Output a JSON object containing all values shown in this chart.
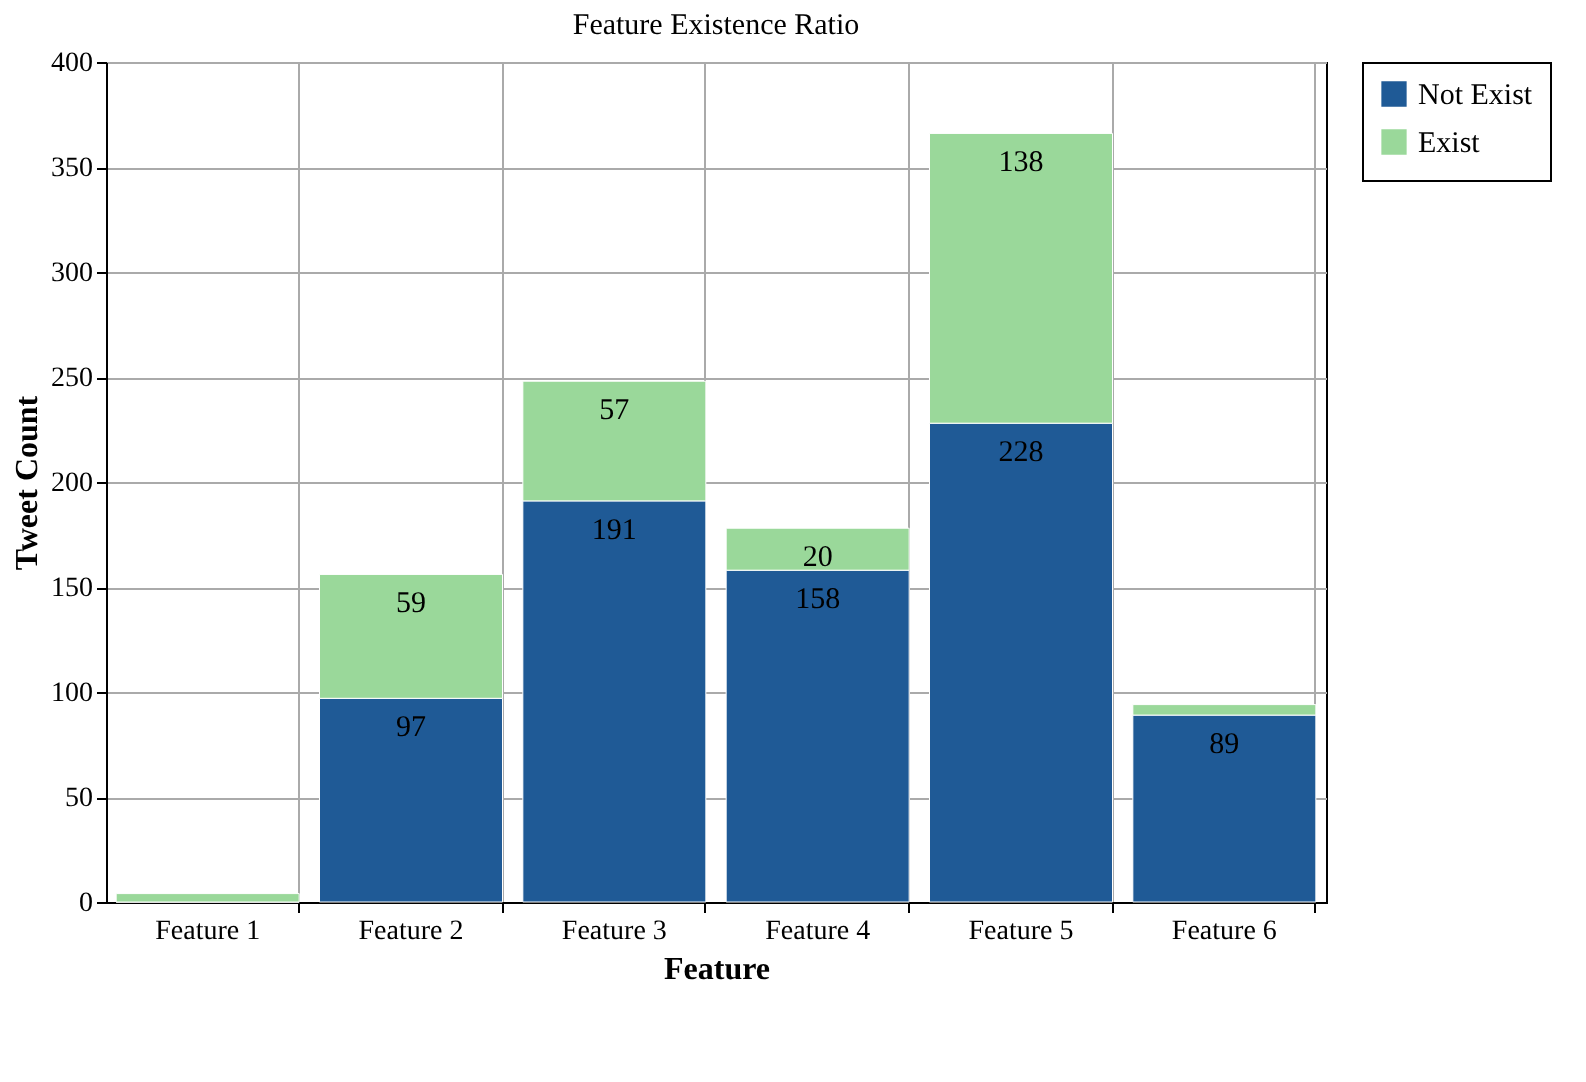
{
  "chart_data": {
    "type": "bar",
    "title": "Feature Existence Ratio",
    "xlabel": "Feature",
    "ylabel": "Tweet Count",
    "categories": [
      "Feature 1",
      "Feature 2",
      "Feature 3",
      "Feature 4",
      "Feature 5",
      "Feature 6"
    ],
    "stacked": true,
    "ylim": [
      0,
      400
    ],
    "yticks": [
      0,
      50,
      100,
      150,
      200,
      250,
      300,
      350,
      400
    ],
    "grid": true,
    "legend": "top right",
    "series": [
      {
        "name": "Not Exist",
        "color": "#1f5a96",
        "values": [
          0,
          97,
          191,
          158,
          228,
          89
        ],
        "value_labels": [
          null,
          "97",
          "191",
          "158",
          "228",
          "89"
        ]
      },
      {
        "name": "Exist",
        "color": "#9ad89a",
        "values": [
          4,
          59,
          57,
          20,
          138,
          5
        ],
        "value_labels": [
          null,
          "59",
          "57",
          "20",
          "138",
          null
        ]
      }
    ]
  }
}
